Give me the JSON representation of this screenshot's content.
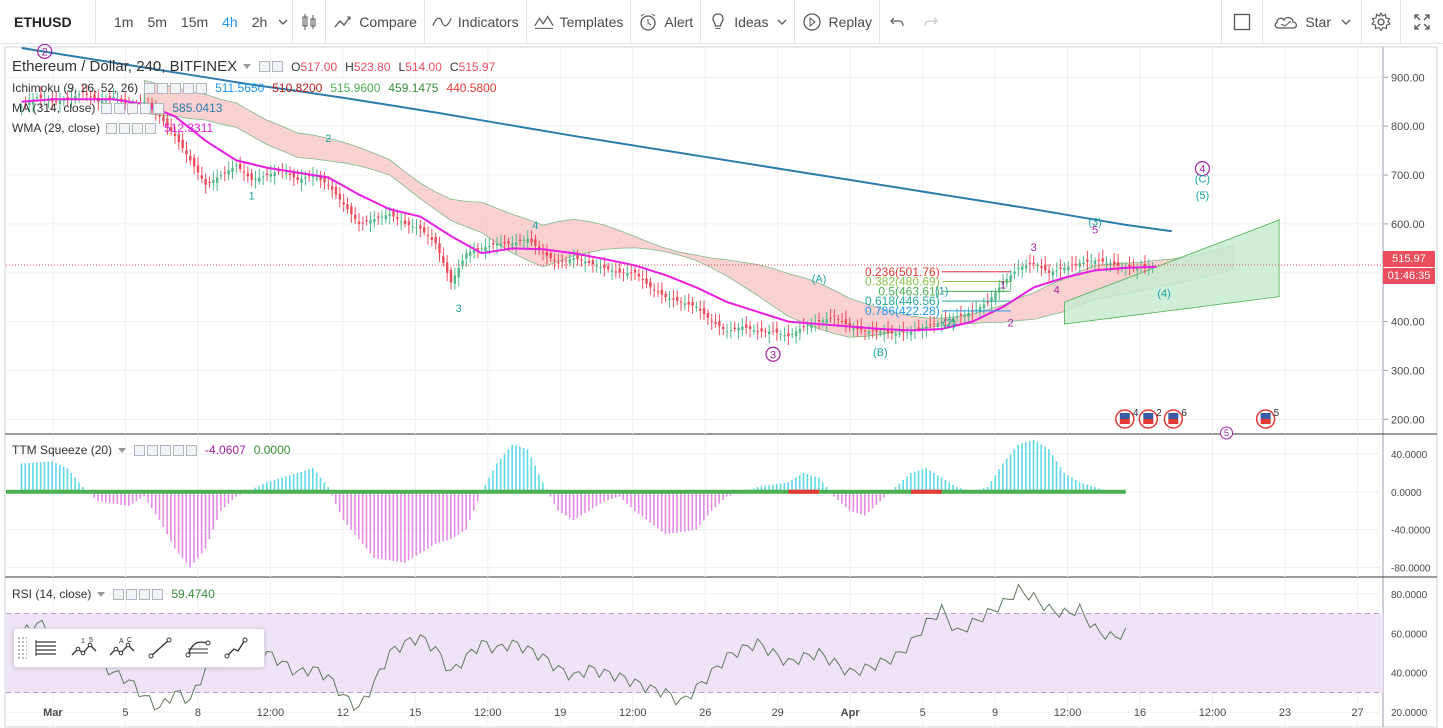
{
  "toolbar": {
    "symbol": "ETHUSD",
    "intervals": [
      "1m",
      "5m",
      "15m",
      "4h",
      "2h"
    ],
    "active_interval": "4h",
    "compare": "Compare",
    "indicators": "Indicators",
    "templates": "Templates",
    "alert": "Alert",
    "ideas": "Ideas",
    "replay": "Replay",
    "star": "Star",
    "icons": [
      "chevron-down-icon",
      "candles-icon",
      "compare-icon",
      "indicators-icon",
      "templates-icon",
      "alert-icon",
      "ideas-icon",
      "replay-icon",
      "undo-icon",
      "redo-icon",
      "square-icon",
      "star-cloud-icon",
      "gear-icon",
      "fullscreen-icon"
    ]
  },
  "colors": {
    "up": "#53b987",
    "down": "#eb4d5c",
    "ma": "#2d7cab",
    "wma": "#e91ee0",
    "cloud_bear": "#f8c2c2",
    "cloud_bull": "#c6ebd0",
    "rsi_band": "#efe3f8",
    "squeeze_pos": "#5fd9e9",
    "squeeze_neg": "#e58be8"
  },
  "chart_data": [
    {
      "type": "line",
      "title": "Ethereum / Dollar, 240, BITFINEX",
      "ohlc": {
        "O": "517.00",
        "H": "523.80",
        "L": "514.00",
        "C": "515.97"
      },
      "price_ticks": [
        "900.00",
        "800.00",
        "700.00",
        "600.00",
        "500.00",
        "400.00",
        "300.00",
        "200.00"
      ],
      "ylim": [
        170,
        960
      ],
      "last_price": "515.97",
      "countdown": "01:46:35",
      "x_labels": [
        "Mar",
        "5",
        "8",
        "12:00",
        "12",
        "15",
        "12:00",
        "19",
        "12:00",
        "26",
        "29",
        "Apr",
        "5",
        "9",
        "12:00",
        "16",
        "12:00",
        "23",
        "27"
      ],
      "indicators": [
        {
          "name": "Ichimoku (9, 26, 52, 26)",
          "values": [
            "511.5650",
            "510.8200",
            "515.9600",
            "459.1475",
            "440.5800"
          ],
          "colors": [
            "#2196f3",
            "#b71c1c",
            "#4caf50",
            "#388e3c",
            "#e53935"
          ]
        },
        {
          "name": "MA (314, close)",
          "values": [
            "585.0413"
          ],
          "colors": [
            "#2d7cab"
          ]
        },
        {
          "name": "WMA (29, close)",
          "values": [
            "512.3311"
          ],
          "colors": [
            "#e91ee0"
          ]
        }
      ],
      "ma_series": [
        [
          0,
          960
        ],
        [
          3,
          945
        ],
        [
          6,
          930
        ],
        [
          9,
          915
        ],
        [
          12,
          900
        ],
        [
          15,
          885
        ],
        [
          18,
          872
        ],
        [
          21,
          858
        ],
        [
          24,
          843
        ],
        [
          27,
          828
        ],
        [
          30,
          812
        ],
        [
          33,
          796
        ],
        [
          36,
          780
        ],
        [
          39,
          765
        ],
        [
          42,
          750
        ],
        [
          45,
          735
        ],
        [
          48,
          720
        ],
        [
          51,
          705
        ],
        [
          54,
          690
        ],
        [
          57,
          675
        ],
        [
          60,
          660
        ],
        [
          63,
          645
        ],
        [
          66,
          630
        ],
        [
          69,
          614
        ],
        [
          72,
          598
        ],
        [
          75,
          585
        ]
      ],
      "price_series": [
        [
          0,
          840
        ],
        [
          1,
          860
        ],
        [
          2,
          850
        ],
        [
          3,
          855
        ],
        [
          4,
          870
        ],
        [
          5,
          850
        ],
        [
          6,
          860
        ],
        [
          7,
          840
        ],
        [
          8,
          850
        ],
        [
          9,
          820
        ],
        [
          10,
          780
        ],
        [
          11,
          730
        ],
        [
          12,
          680
        ],
        [
          13,
          700
        ],
        [
          14,
          720
        ],
        [
          15,
          690
        ],
        [
          16,
          700
        ],
        [
          17,
          710
        ],
        [
          18,
          690
        ],
        [
          19,
          700
        ],
        [
          20,
          680
        ],
        [
          21,
          640
        ],
        [
          22,
          600
        ],
        [
          23,
          610
        ],
        [
          24,
          620
        ],
        [
          25,
          600
        ],
        [
          26,
          590
        ],
        [
          27,
          560
        ],
        [
          28,
          480
        ],
        [
          29,
          540
        ],
        [
          30,
          550
        ],
        [
          31,
          560
        ],
        [
          32,
          560
        ],
        [
          33,
          570
        ],
        [
          34,
          540
        ],
        [
          35,
          520
        ],
        [
          36,
          530
        ],
        [
          37,
          520
        ],
        [
          38,
          510
        ],
        [
          39,
          500
        ],
        [
          40,
          500
        ],
        [
          41,
          470
        ],
        [
          42,
          450
        ],
        [
          43,
          440
        ],
        [
          44,
          430
        ],
        [
          45,
          400
        ],
        [
          46,
          380
        ],
        [
          47,
          390
        ],
        [
          48,
          380
        ],
        [
          49,
          380
        ],
        [
          50,
          370
        ],
        [
          51,
          390
        ],
        [
          52,
          400
        ],
        [
          53,
          410
        ],
        [
          54,
          390
        ],
        [
          55,
          380
        ],
        [
          56,
          380
        ],
        [
          57,
          375
        ],
        [
          58,
          380
        ],
        [
          59,
          390
        ],
        [
          60,
          400
        ],
        [
          61,
          410
        ],
        [
          62,
          420
        ],
        [
          63,
          440
        ],
        [
          64,
          480
        ],
        [
          65,
          510
        ],
        [
          66,
          520
        ],
        [
          67,
          500
        ],
        [
          68,
          510
        ],
        [
          69,
          520
        ],
        [
          70,
          525
        ],
        [
          71,
          520
        ],
        [
          72,
          510
        ],
        [
          73,
          512
        ],
        [
          74,
          516
        ]
      ],
      "wma_series": [
        [
          0,
          850
        ],
        [
          2,
          855
        ],
        [
          4,
          855
        ],
        [
          6,
          855
        ],
        [
          8,
          845
        ],
        [
          10,
          820
        ],
        [
          12,
          770
        ],
        [
          14,
          730
        ],
        [
          16,
          715
        ],
        [
          18,
          705
        ],
        [
          20,
          695
        ],
        [
          22,
          660
        ],
        [
          24,
          630
        ],
        [
          26,
          615
        ],
        [
          28,
          575
        ],
        [
          30,
          540
        ],
        [
          32,
          550
        ],
        [
          34,
          548
        ],
        [
          36,
          540
        ],
        [
          38,
          528
        ],
        [
          40,
          515
        ],
        [
          42,
          495
        ],
        [
          44,
          470
        ],
        [
          46,
          440
        ],
        [
          48,
          420
        ],
        [
          50,
          400
        ],
        [
          52,
          395
        ],
        [
          54,
          390
        ],
        [
          56,
          385
        ],
        [
          58,
          382
        ],
        [
          60,
          385
        ],
        [
          62,
          400
        ],
        [
          64,
          430
        ],
        [
          66,
          470
        ],
        [
          68,
          490
        ],
        [
          70,
          505
        ],
        [
          72,
          510
        ],
        [
          74,
          512
        ]
      ],
      "waves": [
        {
          "t": "2",
          "x": 1.5,
          "y": 945,
          "c": "#a020a0",
          "circle": true
        },
        {
          "t": "1",
          "x": 15,
          "y": 650,
          "c": "#1aa3a3"
        },
        {
          "t": "2",
          "x": 20,
          "y": 768,
          "c": "#1aa3a3"
        },
        {
          "t": "3",
          "x": 28.5,
          "y": 420,
          "c": "#1aa3a3"
        },
        {
          "t": "4",
          "x": 33.5,
          "y": 590,
          "c": "#1aa3a3"
        },
        {
          "t": "(A)",
          "x": 52,
          "y": 480,
          "c": "#1aa3a3"
        },
        {
          "t": "3",
          "x": 49,
          "y": 325,
          "c": "#a020a0",
          "circle": true
        },
        {
          "t": "(B)",
          "x": 56,
          "y": 330,
          "c": "#1aa3a3"
        },
        {
          "t": "(1)",
          "x": 60,
          "y": 455,
          "c": "#1aa3a3"
        },
        {
          "t": "(2)",
          "x": 60.5,
          "y": 390,
          "c": "#1aa3a3"
        },
        {
          "t": "1",
          "x": 64,
          "y": 468,
          "c": "#a020a0"
        },
        {
          "t": "2",
          "x": 64.5,
          "y": 390,
          "c": "#a020a0"
        },
        {
          "t": "3",
          "x": 66,
          "y": 545,
          "c": "#a020a0"
        },
        {
          "t": "4",
          "x": 67.5,
          "y": 458,
          "c": "#a020a0"
        },
        {
          "t": "5",
          "x": 70,
          "y": 580,
          "c": "#a020a0"
        },
        {
          "t": "(3)",
          "x": 70,
          "y": 597,
          "c": "#1aa3a3"
        },
        {
          "t": "(4)",
          "x": 74.5,
          "y": 450,
          "c": "#1aa3a3"
        },
        {
          "t": "4",
          "x": 77,
          "y": 705,
          "c": "#a020a0",
          "circle": true
        },
        {
          "t": "(C)",
          "x": 77,
          "y": 685,
          "c": "#1aa3a3"
        },
        {
          "t": "(5)",
          "x": 77,
          "y": 651,
          "c": "#1aa3a3"
        }
      ],
      "fib": [
        {
          "level": "0.236(501.76)",
          "c": "#e53935"
        },
        {
          "level": "0.382(480.69)",
          "c": "#8bc34a"
        },
        {
          "level": "0.5(463.61)",
          "c": "#4caf50"
        },
        {
          "level": "0.618(446.56)",
          "c": "#26a69a"
        },
        {
          "level": "0.786(422.28)",
          "c": "#2196f3"
        }
      ],
      "events": [
        {
          "label": "4",
          "x": 71.5
        },
        {
          "label": "2",
          "x": 73
        },
        {
          "label": "6",
          "x": 74.6
        },
        {
          "label": "5",
          "x": 80.5
        }
      ],
      "event_marker": {
        "label": "5",
        "x": 78
      }
    },
    {
      "type": "bar",
      "title": "TTM Squeeze (20)",
      "values_display": [
        "-4.0607",
        "0.0000"
      ],
      "ticks": [
        "40.0000",
        "0.0000",
        "-40.0000",
        "-80.0000"
      ],
      "ylim": [
        -90,
        60
      ],
      "profile": [
        [
          0,
          30
        ],
        [
          2,
          32
        ],
        [
          3,
          25
        ],
        [
          4,
          5
        ],
        [
          5,
          -10
        ],
        [
          7,
          -15
        ],
        [
          8,
          -5
        ],
        [
          9,
          -30
        ],
        [
          10,
          -60
        ],
        [
          11,
          -80
        ],
        [
          12,
          -60
        ],
        [
          13,
          -20
        ],
        [
          14,
          -5
        ],
        [
          16,
          10
        ],
        [
          18,
          20
        ],
        [
          19,
          25
        ],
        [
          20,
          5
        ],
        [
          21,
          -30
        ],
        [
          23,
          -70
        ],
        [
          25,
          -75
        ],
        [
          27,
          -55
        ],
        [
          28,
          -50
        ],
        [
          29,
          -40
        ],
        [
          30,
          0
        ],
        [
          31,
          30
        ],
        [
          32,
          50
        ],
        [
          33,
          45
        ],
        [
          34,
          10
        ],
        [
          35,
          -20
        ],
        [
          36,
          -30
        ],
        [
          38,
          -10
        ],
        [
          39,
          -5
        ],
        [
          40,
          -20
        ],
        [
          42,
          -45
        ],
        [
          44,
          -40
        ],
        [
          45,
          -20
        ],
        [
          46,
          -5
        ],
        [
          48,
          5
        ],
        [
          50,
          10
        ],
        [
          51,
          20
        ],
        [
          52,
          15
        ],
        [
          53,
          -5
        ],
        [
          54,
          -20
        ],
        [
          55,
          -25
        ],
        [
          56,
          -10
        ],
        [
          57,
          5
        ],
        [
          58,
          20
        ],
        [
          59,
          25
        ],
        [
          60,
          15
        ],
        [
          61,
          5
        ],
        [
          62,
          0
        ],
        [
          63,
          5
        ],
        [
          64,
          30
        ],
        [
          65,
          50
        ],
        [
          66,
          55
        ],
        [
          67,
          45
        ],
        [
          68,
          20
        ],
        [
          69,
          10
        ],
        [
          70,
          5
        ],
        [
          71,
          0
        ]
      ]
    },
    {
      "type": "line",
      "title": "RSI (14, close)",
      "values_display": [
        "59.4740"
      ],
      "ticks": [
        "80.0000",
        "60.0000",
        "40.0000",
        "20.0000"
      ],
      "ylim": [
        12,
        88
      ],
      "band": [
        30,
        70
      ],
      "rsi": [
        [
          0,
          60
        ],
        [
          1,
          65
        ],
        [
          2,
          62
        ],
        [
          3,
          55
        ],
        [
          4,
          48
        ],
        [
          5,
          45
        ],
        [
          6,
          40
        ],
        [
          7,
          36
        ],
        [
          8,
          28
        ],
        [
          9,
          22
        ],
        [
          10,
          30
        ],
        [
          11,
          26
        ],
        [
          12,
          42
        ],
        [
          13,
          47
        ],
        [
          14,
          52
        ],
        [
          15,
          47
        ],
        [
          16,
          50
        ],
        [
          17,
          45
        ],
        [
          18,
          40
        ],
        [
          19,
          42
        ],
        [
          20,
          38
        ],
        [
          21,
          28
        ],
        [
          22,
          22
        ],
        [
          23,
          35
        ],
        [
          24,
          50
        ],
        [
          25,
          55
        ],
        [
          26,
          58
        ],
        [
          27,
          52
        ],
        [
          28,
          40
        ],
        [
          29,
          48
        ],
        [
          30,
          55
        ],
        [
          31,
          52
        ],
        [
          32,
          55
        ],
        [
          33,
          52
        ],
        [
          34,
          48
        ],
        [
          35,
          42
        ],
        [
          36,
          38
        ],
        [
          37,
          42
        ],
        [
          38,
          40
        ],
        [
          39,
          38
        ],
        [
          40,
          35
        ],
        [
          41,
          32
        ],
        [
          42,
          30
        ],
        [
          43,
          25
        ],
        [
          44,
          32
        ],
        [
          45,
          40
        ],
        [
          46,
          48
        ],
        [
          47,
          52
        ],
        [
          48,
          55
        ],
        [
          49,
          50
        ],
        [
          50,
          45
        ],
        [
          51,
          48
        ],
        [
          52,
          50
        ],
        [
          53,
          45
        ],
        [
          54,
          40
        ],
        [
          55,
          42
        ],
        [
          56,
          45
        ],
        [
          57,
          48
        ],
        [
          58,
          55
        ],
        [
          59,
          65
        ],
        [
          60,
          72
        ],
        [
          61,
          60
        ],
        [
          62,
          65
        ],
        [
          63,
          70
        ],
        [
          64,
          75
        ],
        [
          65,
          82
        ],
        [
          66,
          78
        ],
        [
          67,
          72
        ],
        [
          68,
          70
        ],
        [
          69,
          72
        ],
        [
          70,
          62
        ],
        [
          71,
          58
        ],
        [
          72,
          60
        ]
      ]
    }
  ],
  "drawing_tools": [
    "levels-icon",
    "wave-15-icon",
    "wave-ac-icon",
    "trendline-icon",
    "fib-icon",
    "path-icon"
  ],
  "wave_toolbar_labels": {
    "a": "1",
    "b": "5",
    "c": "A",
    "d": "C"
  }
}
